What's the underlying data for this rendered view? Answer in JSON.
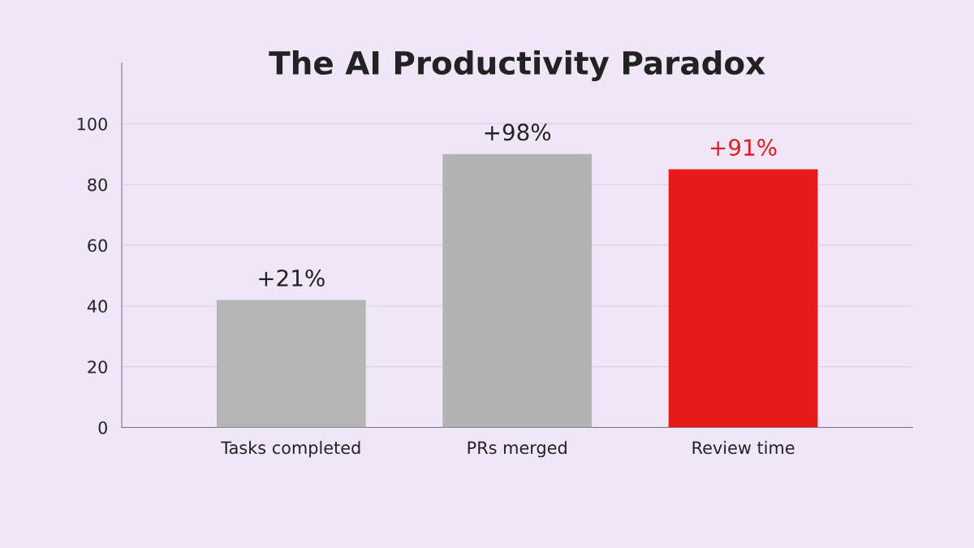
{
  "chart_data": {
    "type": "bar",
    "title": "The AI Productivity Paradox",
    "categories": [
      "Tasks completed",
      "PRs merged",
      "Review time"
    ],
    "values": [
      42,
      90,
      85
    ],
    "colors": [
      "#b5b5b5",
      "#b3b3b3",
      "#e81a1a"
    ],
    "annotations": [
      {
        "text": "+21%",
        "x": "Tasks completed",
        "y": 42
      },
      {
        "text": "+98%",
        "x": "PRs merged",
        "y": 90
      },
      {
        "text": "+91%",
        "x": "Review time",
        "y": 85
      }
    ],
    "ylim": [
      0,
      120
    ],
    "yticks": [
      0,
      20,
      40,
      60,
      80,
      100
    ],
    "grid": "y"
  }
}
